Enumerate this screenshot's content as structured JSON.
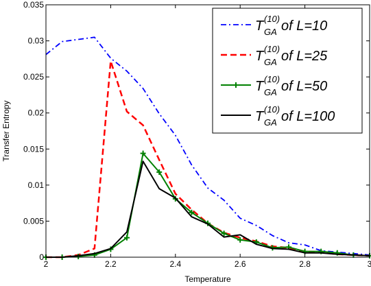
{
  "chart_data": {
    "type": "line",
    "title": "",
    "xlabel": "Temperature",
    "ylabel": "Transfer Entropy",
    "xlim": [
      2,
      3
    ],
    "ylim": [
      0,
      0.035
    ],
    "xticks": [
      2,
      2.2,
      2.4,
      2.6,
      2.8,
      3
    ],
    "xtick_labels": [
      "2",
      "2.2",
      "2.4",
      "2.6",
      "2.8",
      "3"
    ],
    "yticks": [
      0,
      0.005,
      0.01,
      0.015,
      0.02,
      0.025,
      0.03,
      0.035
    ],
    "ytick_labels": [
      "0",
      "0.005",
      "0.01",
      "0.015",
      "0.02",
      "0.025",
      "0.03",
      "0.035"
    ],
    "grid": false,
    "legend_position": "top-right",
    "series": [
      {
        "name": "of L=10",
        "legend_main": "T",
        "legend_sup": "(10)",
        "legend_sub": "GA",
        "legend_rest": " of L=10",
        "color": "#0000ff",
        "style": "dashdot",
        "marker": "none",
        "x": [
          2,
          2.05,
          2.1,
          2.15,
          2.2,
          2.25,
          2.3,
          2.35,
          2.4,
          2.45,
          2.5,
          2.55,
          2.6,
          2.65,
          2.7,
          2.75,
          2.8,
          2.85,
          2.9,
          2.95,
          3
        ],
        "y": [
          0.0281,
          0.0299,
          0.0302,
          0.0305,
          0.0276,
          0.0258,
          0.0234,
          0.0199,
          0.0169,
          0.0128,
          0.0096,
          0.0079,
          0.0054,
          0.0044,
          0.003,
          0.002,
          0.0017,
          0.0009,
          0.0007,
          0.0005,
          0.0003
        ]
      },
      {
        "name": "of L=25",
        "legend_main": "T",
        "legend_sup": "(10)",
        "legend_sub": "GA",
        "legend_rest": " of L=25",
        "color": "#ff0000",
        "style": "dashed",
        "marker": "none",
        "x": [
          2,
          2.05,
          2.1,
          2.15,
          2.2,
          2.25,
          2.3,
          2.35,
          2.4,
          2.45,
          2.5,
          2.55,
          2.6,
          2.65,
          2.7,
          2.75,
          2.8,
          2.85,
          2.9,
          2.95,
          3
        ],
        "y": [
          0.0,
          0.0,
          0.0003,
          0.0012,
          0.0272,
          0.0202,
          0.0183,
          0.0135,
          0.0088,
          0.0066,
          0.0047,
          0.0034,
          0.0027,
          0.0022,
          0.0015,
          0.0013,
          0.0008,
          0.0007,
          0.0004,
          0.0003,
          0.0002
        ]
      },
      {
        "name": "of L=50",
        "legend_main": "T",
        "legend_sup": "(10)",
        "legend_sub": "GA",
        "legend_rest": " of L=50",
        "color": "#008000",
        "style": "solid",
        "marker": "plus",
        "x": [
          2,
          2.05,
          2.1,
          2.15,
          2.2,
          2.25,
          2.3,
          2.35,
          2.4,
          2.45,
          2.5,
          2.55,
          2.6,
          2.65,
          2.7,
          2.75,
          2.8,
          2.85,
          2.9,
          2.95,
          3
        ],
        "y": [
          0.0,
          0.0,
          0.0001,
          0.0003,
          0.0011,
          0.0027,
          0.0144,
          0.0118,
          0.0081,
          0.0062,
          0.0047,
          0.0033,
          0.0024,
          0.0021,
          0.0013,
          0.0014,
          0.0008,
          0.0008,
          0.0006,
          0.0003,
          0.0002
        ]
      },
      {
        "name": "of L=100",
        "legend_main": "T",
        "legend_sup": "(10)",
        "legend_sub": "GA",
        "legend_rest": " of L=100",
        "color": "#000000",
        "style": "solid",
        "marker": "none",
        "x": [
          2,
          2.05,
          2.1,
          2.15,
          2.2,
          2.25,
          2.3,
          2.35,
          2.4,
          2.45,
          2.5,
          2.55,
          2.6,
          2.65,
          2.7,
          2.75,
          2.8,
          2.85,
          2.9,
          2.95,
          3
        ],
        "y": [
          0.0,
          0.0,
          0.0002,
          0.0005,
          0.0012,
          0.0035,
          0.0133,
          0.0095,
          0.0082,
          0.0056,
          0.0046,
          0.0028,
          0.0031,
          0.0018,
          0.0012,
          0.0011,
          0.0006,
          0.0006,
          0.0004,
          0.0003,
          0.0002
        ]
      }
    ]
  }
}
